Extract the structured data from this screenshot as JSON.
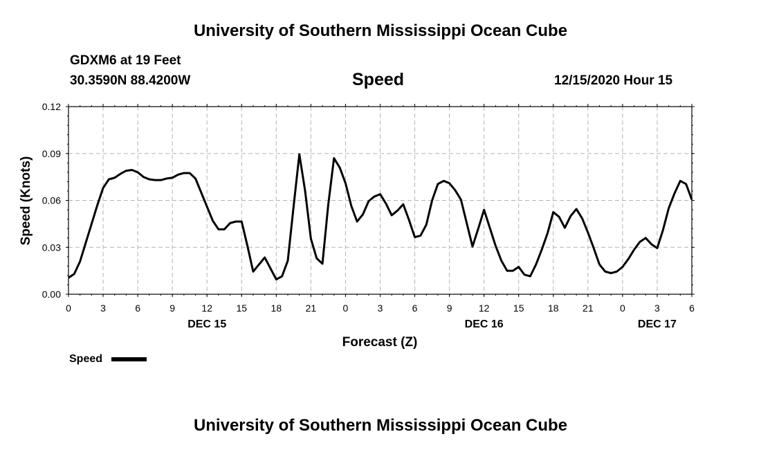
{
  "header": {
    "title": "University of Southern Mississippi Ocean Cube",
    "station": "GDXM6 at 19 Feet",
    "coords": "30.3590N 88.4200W",
    "chart_title": "Speed",
    "issued": "12/15/2020 Hour 15"
  },
  "footer": {
    "title": "University of Southern Mississippi Ocean Cube"
  },
  "legend": {
    "label": "Speed"
  },
  "colors": {
    "line": "#000000",
    "grid": "#b3b3b3"
  },
  "chart_data": {
    "type": "line",
    "title": "Speed",
    "xlabel": "Forecast (Z)",
    "ylabel": "Speed (Knots)",
    "xlim": [
      0,
      54
    ],
    "ylim": [
      0,
      0.12
    ],
    "y_ticks": [
      "0.00",
      "0.03",
      "0.06",
      "0.09",
      "0.12"
    ],
    "x_tick_labels": [
      "0",
      "3",
      "6",
      "9",
      "12",
      "15",
      "18",
      "21",
      "0",
      "3",
      "6",
      "9",
      "12",
      "15",
      "18",
      "21",
      "0",
      "3",
      "6"
    ],
    "date_labels": [
      {
        "label": "DEC 15",
        "x": 12
      },
      {
        "label": "DEC 16",
        "x": 36
      },
      {
        "label": "DEC 17",
        "x": 51
      }
    ],
    "series": [
      {
        "name": "Speed",
        "x": [
          0,
          0.5,
          1,
          1.5,
          2,
          2.5,
          3,
          3.5,
          4,
          4.5,
          5,
          5.5,
          6,
          6.5,
          7,
          7.5,
          8,
          8.5,
          9,
          9.5,
          10,
          10.5,
          11,
          11.5,
          12,
          12.5,
          13,
          13.5,
          14,
          14.5,
          15,
          15.5,
          16,
          16.5,
          17,
          17.5,
          18,
          18.5,
          19,
          19.5,
          20,
          20.5,
          21,
          21.5,
          22,
          22.5,
          23,
          23.5,
          24,
          24.5,
          25,
          25.5,
          26,
          26.5,
          27,
          27.5,
          28,
          28.5,
          29,
          29.5,
          30,
          30.5,
          31,
          31.5,
          32,
          32.5,
          33,
          33.5,
          34,
          34.5,
          35,
          35.5,
          36,
          36.5,
          37,
          37.5,
          38,
          38.5,
          39,
          39.5,
          40,
          40.5,
          41,
          41.5,
          42,
          42.5,
          43,
          43.5,
          44,
          44.5,
          45,
          45.5,
          46,
          46.5,
          47,
          47.5,
          48,
          48.5,
          49,
          49.5,
          50,
          50.5,
          51,
          51.5,
          52,
          52.5,
          53,
          53.5,
          54
        ],
        "values": [
          0.0105,
          0.013,
          0.021,
          0.033,
          0.045,
          0.057,
          0.068,
          0.0735,
          0.0745,
          0.077,
          0.079,
          0.0795,
          0.078,
          0.075,
          0.0735,
          0.073,
          0.073,
          0.074,
          0.0745,
          0.0765,
          0.0775,
          0.0775,
          0.074,
          0.065,
          0.056,
          0.047,
          0.0415,
          0.0415,
          0.0455,
          0.0465,
          0.0465,
          0.031,
          0.0145,
          0.019,
          0.0235,
          0.0165,
          0.0095,
          0.0115,
          0.0215,
          0.056,
          0.0895,
          0.066,
          0.0355,
          0.023,
          0.0195,
          0.057,
          0.087,
          0.081,
          0.071,
          0.0565,
          0.0465,
          0.051,
          0.0595,
          0.0625,
          0.064,
          0.058,
          0.0505,
          0.0535,
          0.0575,
          0.0475,
          0.0365,
          0.0375,
          0.0445,
          0.06,
          0.0705,
          0.0725,
          0.071,
          0.0665,
          0.0605,
          0.0455,
          0.0305,
          0.042,
          0.054,
          0.0425,
          0.031,
          0.0215,
          0.015,
          0.015,
          0.0175,
          0.0125,
          0.0115,
          0.019,
          0.0285,
          0.039,
          0.0525,
          0.0495,
          0.0425,
          0.05,
          0.0545,
          0.0485,
          0.0395,
          0.0295,
          0.019,
          0.0145,
          0.0135,
          0.0145,
          0.0175,
          0.0225,
          0.0285,
          0.0335,
          0.036,
          0.032,
          0.0295,
          0.041,
          0.055,
          0.0645,
          0.0725,
          0.0705,
          0.0605
        ]
      }
    ]
  }
}
